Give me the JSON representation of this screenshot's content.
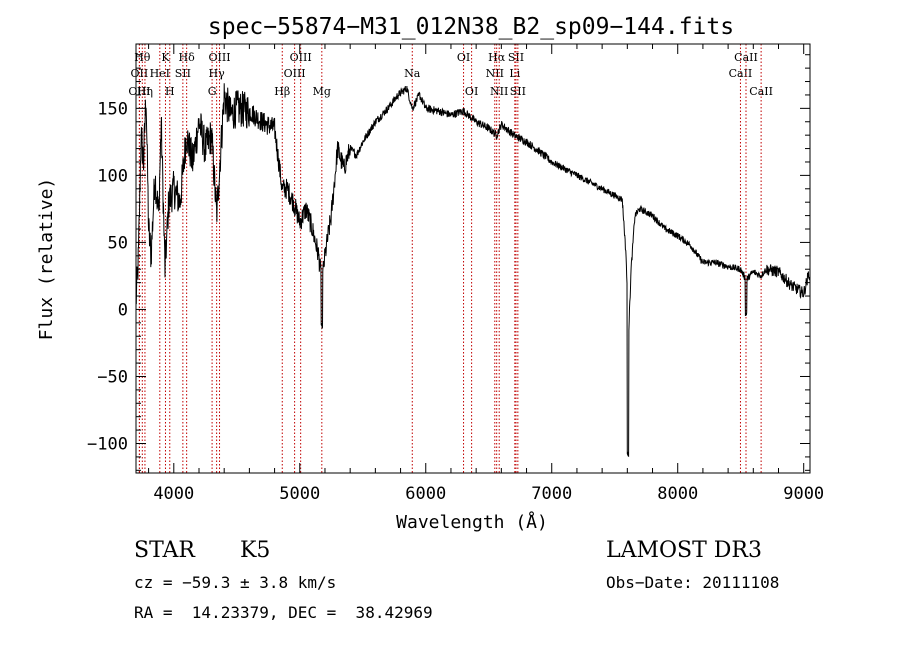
{
  "chart_data": {
    "type": "line",
    "title": "spec−55874−M31_012N38_B2_sp09−144.fits",
    "xlabel": "Wavelength (Å)",
    "ylabel": "Flux (relative)",
    "xlim": [
      3700,
      9050
    ],
    "ylim": [
      -122,
      198
    ],
    "x_ticks": [
      4000,
      5000,
      6000,
      7000,
      8000,
      9000
    ],
    "x_tick_labels": [
      "4000",
      "5000",
      "6000",
      "7000",
      "8000",
      "9000"
    ],
    "y_ticks": [
      -100,
      -50,
      0,
      50,
      100,
      150
    ],
    "y_tick_labels": [
      "−100",
      "−50",
      "0",
      "50",
      "100",
      "150"
    ],
    "series": [
      {
        "name": "spectrum",
        "anchors": [
          [
            3700,
            5
          ],
          [
            3720,
            40
          ],
          [
            3740,
            130
          ],
          [
            3760,
            110
          ],
          [
            3780,
            160
          ],
          [
            3800,
            60
          ],
          [
            3820,
            40
          ],
          [
            3850,
            100
          ],
          [
            3880,
            70
          ],
          [
            3900,
            140
          ],
          [
            3930,
            30
          ],
          [
            3960,
            80
          ],
          [
            4000,
            90
          ],
          [
            4050,
            80
          ],
          [
            4100,
            130
          ],
          [
            4150,
            110
          ],
          [
            4200,
            140
          ],
          [
            4250,
            120
          ],
          [
            4300,
            130
          ],
          [
            4340,
            70
          ],
          [
            4400,
            160
          ],
          [
            4450,
            145
          ],
          [
            4500,
            150
          ],
          [
            4600,
            148
          ],
          [
            4700,
            140
          ],
          [
            4800,
            135
          ],
          [
            4860,
            90
          ],
          [
            4900,
            90
          ],
          [
            4950,
            80
          ],
          [
            5000,
            65
          ],
          [
            5050,
            75
          ],
          [
            5100,
            60
          ],
          [
            5150,
            40
          ],
          [
            5175,
            20
          ],
          [
            5200,
            40
          ],
          [
            5250,
            70
          ],
          [
            5300,
            120
          ],
          [
            5350,
            105
          ],
          [
            5400,
            120
          ],
          [
            5450,
            115
          ],
          [
            5500,
            125
          ],
          [
            5600,
            140
          ],
          [
            5700,
            150
          ],
          [
            5780,
            160
          ],
          [
            5850,
            165
          ],
          [
            5893,
            150
          ],
          [
            5950,
            160
          ],
          [
            6000,
            150
          ],
          [
            6100,
            148
          ],
          [
            6200,
            145
          ],
          [
            6300,
            148
          ],
          [
            6400,
            140
          ],
          [
            6500,
            135
          ],
          [
            6563,
            130
          ],
          [
            6600,
            138
          ],
          [
            6700,
            130
          ],
          [
            6800,
            125
          ],
          [
            6900,
            118
          ],
          [
            7000,
            110
          ],
          [
            7100,
            105
          ],
          [
            7200,
            100
          ],
          [
            7300,
            95
          ],
          [
            7400,
            90
          ],
          [
            7500,
            85
          ],
          [
            7560,
            82
          ],
          [
            7590,
            40
          ],
          [
            7610,
            -20
          ],
          [
            7630,
            30
          ],
          [
            7660,
            70
          ],
          [
            7700,
            75
          ],
          [
            7800,
            70
          ],
          [
            7900,
            60
          ],
          [
            8000,
            55
          ],
          [
            8100,
            48
          ],
          [
            8200,
            35
          ],
          [
            8300,
            35
          ],
          [
            8400,
            32
          ],
          [
            8498,
            30
          ],
          [
            8542,
            22
          ],
          [
            8600,
            28
          ],
          [
            8662,
            25
          ],
          [
            8700,
            30
          ],
          [
            8800,
            28
          ],
          [
            8900,
            18
          ],
          [
            9000,
            12
          ],
          [
            9050,
            30
          ]
        ],
        "absorption_features": [
          [
            5175,
            -12
          ],
          [
            7605,
            -108
          ],
          [
            8542,
            -3
          ]
        ]
      }
    ],
    "line_markers": [
      {
        "wavelength": 3750,
        "label": "Hθ",
        "row": 1
      },
      {
        "wavelength": 3727,
        "label": "OII",
        "row": 2
      },
      {
        "wavelength": 3727,
        "label": "OIII",
        "row": 3
      },
      {
        "wavelength": 3771,
        "label": "Hη",
        "row": 3
      },
      {
        "wavelength": 3889,
        "label": "HeI",
        "row": 2
      },
      {
        "wavelength": 3934,
        "label": "K",
        "row": 1
      },
      {
        "wavelength": 3968,
        "label": "H",
        "row": 3
      },
      {
        "wavelength": 4072,
        "label": "SII",
        "row": 2
      },
      {
        "wavelength": 4102,
        "label": "Hδ",
        "row": 1
      },
      {
        "wavelength": 4304,
        "label": "G",
        "row": 3
      },
      {
        "wavelength": 4340,
        "label": "Hγ",
        "row": 2
      },
      {
        "wavelength": 4363,
        "label": "OIII",
        "row": 1
      },
      {
        "wavelength": 4861,
        "label": "Hβ",
        "row": 3
      },
      {
        "wavelength": 4959,
        "label": "OIII",
        "row": 2
      },
      {
        "wavelength": 5007,
        "label": "OIII",
        "row": 1
      },
      {
        "wavelength": 5175,
        "label": "Mg",
        "row": 3
      },
      {
        "wavelength": 5893,
        "label": "Na",
        "row": 2
      },
      {
        "wavelength": 6300,
        "label": "OI",
        "row": 1
      },
      {
        "wavelength": 6364,
        "label": "OI",
        "row": 3
      },
      {
        "wavelength": 6548,
        "label": "NII",
        "row": 2
      },
      {
        "wavelength": 6563,
        "label": "Hα",
        "row": 1
      },
      {
        "wavelength": 6583,
        "label": "NII",
        "row": 3
      },
      {
        "wavelength": 6707,
        "label": "Li",
        "row": 2
      },
      {
        "wavelength": 6716,
        "label": "SII",
        "row": 1
      },
      {
        "wavelength": 6731,
        "label": "SII",
        "row": 3
      },
      {
        "wavelength": 8498,
        "label": "CaII",
        "row": 2
      },
      {
        "wavelength": 8542,
        "label": "CaII",
        "row": 1
      },
      {
        "wavelength": 8662,
        "label": "CaII",
        "row": 3
      }
    ]
  },
  "info": {
    "object_class": "STAR",
    "subclass": "K5",
    "survey": "LAMOST DR3",
    "redshift": "cz = −59.3 ± 3.8 km/s",
    "obs_date": "Obs−Date: 20111108",
    "coords": "RA =  14.23379, DEC =  38.42969"
  }
}
